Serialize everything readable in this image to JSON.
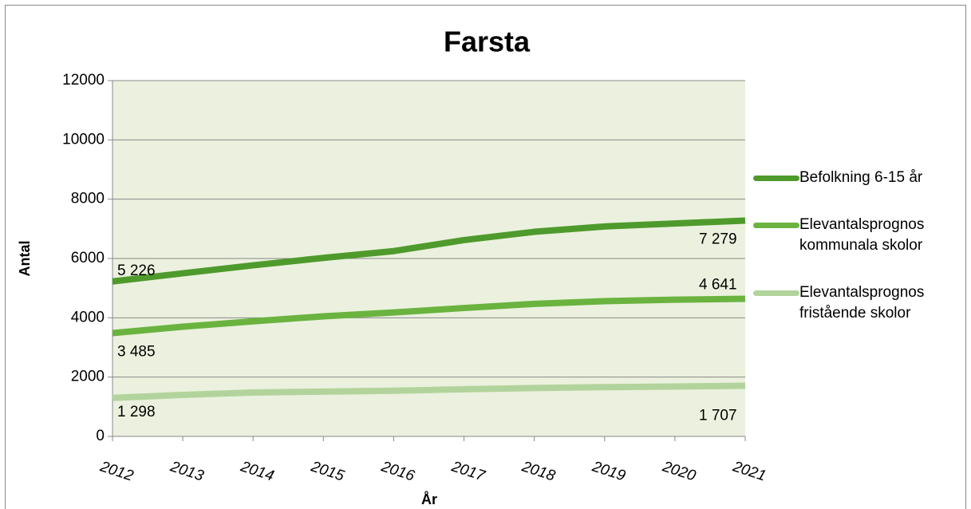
{
  "chart_data": {
    "type": "line",
    "title": "Farsta",
    "x_label": "År",
    "y_label": "Antal",
    "categories": [
      "2012",
      "2013",
      "2014",
      "2015",
      "2016",
      "2017",
      "2018",
      "2019",
      "2020",
      "2021"
    ],
    "ylim": [
      0,
      12000
    ],
    "yticks": [
      0,
      2000,
      4000,
      6000,
      8000,
      10000,
      12000
    ],
    "grid": true,
    "legend": "right",
    "series": [
      {
        "name": "Befolkning 6-15 år",
        "color": "#4f9a2c",
        "values": [
          5226,
          5500,
          5770,
          6020,
          6250,
          6620,
          6900,
          7080,
          7180,
          7279
        ],
        "value_labels": [
          "5 226",
          null,
          null,
          null,
          null,
          null,
          null,
          null,
          null,
          "7 279"
        ]
      },
      {
        "name": "Elevantalsprognos kommunala skolor",
        "color": "#6ab33f",
        "values": [
          3485,
          3700,
          3880,
          4050,
          4180,
          4330,
          4470,
          4560,
          4610,
          4641
        ],
        "value_labels": [
          "3 485",
          null,
          null,
          null,
          null,
          null,
          null,
          null,
          null,
          "4 641"
        ]
      },
      {
        "name": "Elevantalsprognos fristående skolor",
        "color": "#b2d49c",
        "values": [
          1298,
          1400,
          1480,
          1510,
          1540,
          1590,
          1630,
          1660,
          1680,
          1707
        ],
        "value_labels": [
          "1 298",
          null,
          null,
          null,
          null,
          null,
          null,
          null,
          null,
          "1 707"
        ]
      }
    ]
  }
}
